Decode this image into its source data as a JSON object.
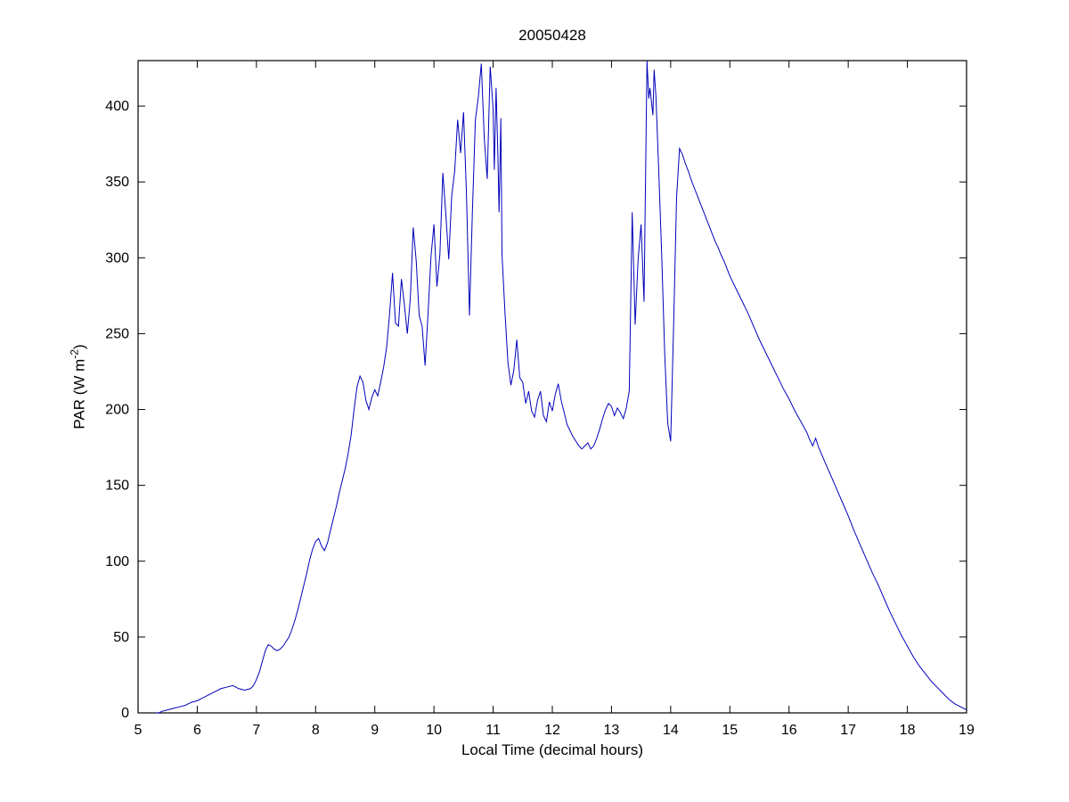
{
  "chart_data": {
    "type": "line",
    "title": "20050428",
    "xlabel": "Local Time (decimal hours)",
    "ylabel": "PAR (W m^-2)",
    "ylabel_parts": {
      "base": "PAR (W m",
      "sup": "-2",
      "close": ")"
    },
    "xlim": [
      5,
      19
    ],
    "ylim": [
      0,
      430
    ],
    "xticks": [
      5,
      6,
      7,
      8,
      9,
      10,
      11,
      12,
      13,
      14,
      15,
      16,
      17,
      18,
      19
    ],
    "yticks": [
      0,
      50,
      100,
      150,
      200,
      250,
      300,
      350,
      400
    ],
    "grid": false,
    "legend": "none",
    "line_color": "#0000bb",
    "axis_color": "#000000",
    "series": [
      {
        "name": "PAR",
        "color": "#0000bb",
        "points": [
          [
            5.3,
            0
          ],
          [
            5.35,
            0
          ],
          [
            5.4,
            1
          ],
          [
            5.5,
            2
          ],
          [
            5.6,
            3
          ],
          [
            5.7,
            4
          ],
          [
            5.8,
            5
          ],
          [
            5.9,
            7
          ],
          [
            6.0,
            8
          ],
          [
            6.1,
            10
          ],
          [
            6.2,
            12
          ],
          [
            6.3,
            14
          ],
          [
            6.4,
            16
          ],
          [
            6.5,
            17
          ],
          [
            6.6,
            18
          ],
          [
            6.65,
            17
          ],
          [
            6.7,
            16
          ],
          [
            6.8,
            15
          ],
          [
            6.9,
            16
          ],
          [
            6.95,
            18
          ],
          [
            7.0,
            22
          ],
          [
            7.05,
            27
          ],
          [
            7.1,
            34
          ],
          [
            7.15,
            41
          ],
          [
            7.2,
            45
          ],
          [
            7.25,
            44
          ],
          [
            7.3,
            42
          ],
          [
            7.35,
            41
          ],
          [
            7.4,
            42
          ],
          [
            7.45,
            44
          ],
          [
            7.5,
            47
          ],
          [
            7.55,
            50
          ],
          [
            7.6,
            55
          ],
          [
            7.65,
            61
          ],
          [
            7.7,
            68
          ],
          [
            7.75,
            76
          ],
          [
            7.8,
            84
          ],
          [
            7.85,
            92
          ],
          [
            7.9,
            101
          ],
          [
            7.95,
            108
          ],
          [
            8.0,
            113
          ],
          [
            8.05,
            115
          ],
          [
            8.1,
            110
          ],
          [
            8.15,
            107
          ],
          [
            8.2,
            112
          ],
          [
            8.25,
            120
          ],
          [
            8.3,
            128
          ],
          [
            8.35,
            136
          ],
          [
            8.4,
            145
          ],
          [
            8.45,
            153
          ],
          [
            8.5,
            161
          ],
          [
            8.55,
            171
          ],
          [
            8.6,
            183
          ],
          [
            8.65,
            200
          ],
          [
            8.7,
            215
          ],
          [
            8.75,
            222
          ],
          [
            8.8,
            218
          ],
          [
            8.85,
            206
          ],
          [
            8.9,
            200
          ],
          [
            8.95,
            208
          ],
          [
            9.0,
            213
          ],
          [
            9.05,
            209
          ],
          [
            9.1,
            218
          ],
          [
            9.15,
            228
          ],
          [
            9.2,
            241
          ],
          [
            9.25,
            263
          ],
          [
            9.3,
            290
          ],
          [
            9.35,
            257
          ],
          [
            9.4,
            255
          ],
          [
            9.45,
            286
          ],
          [
            9.5,
            269
          ],
          [
            9.55,
            250
          ],
          [
            9.6,
            273
          ],
          [
            9.65,
            320
          ],
          [
            9.7,
            298
          ],
          [
            9.75,
            262
          ],
          [
            9.8,
            255
          ],
          [
            9.85,
            229
          ],
          [
            9.9,
            263
          ],
          [
            9.95,
            301
          ],
          [
            10.0,
            322
          ],
          [
            10.05,
            281
          ],
          [
            10.1,
            302
          ],
          [
            10.15,
            356
          ],
          [
            10.2,
            329
          ],
          [
            10.25,
            299
          ],
          [
            10.3,
            341
          ],
          [
            10.35,
            357
          ],
          [
            10.4,
            391
          ],
          [
            10.45,
            369
          ],
          [
            10.5,
            396
          ],
          [
            10.55,
            341
          ],
          [
            10.6,
            262
          ],
          [
            10.65,
            331
          ],
          [
            10.7,
            391
          ],
          [
            10.75,
            406
          ],
          [
            10.8,
            428
          ],
          [
            10.85,
            379
          ],
          [
            10.9,
            352
          ],
          [
            10.95,
            426
          ],
          [
            11.0,
            398
          ],
          [
            11.02,
            358
          ],
          [
            11.05,
            412
          ],
          [
            11.08,
            368
          ],
          [
            11.1,
            330
          ],
          [
            11.13,
            392
          ],
          [
            11.15,
            302
          ],
          [
            11.2,
            264
          ],
          [
            11.25,
            231
          ],
          [
            11.3,
            216
          ],
          [
            11.35,
            226
          ],
          [
            11.4,
            246
          ],
          [
            11.45,
            221
          ],
          [
            11.5,
            218
          ],
          [
            11.55,
            204
          ],
          [
            11.6,
            212
          ],
          [
            11.65,
            199
          ],
          [
            11.7,
            195
          ],
          [
            11.75,
            206
          ],
          [
            11.8,
            212
          ],
          [
            11.85,
            196
          ],
          [
            11.9,
            192
          ],
          [
            11.95,
            205
          ],
          [
            12.0,
            199
          ],
          [
            12.05,
            210
          ],
          [
            12.1,
            217
          ],
          [
            12.15,
            206
          ],
          [
            12.2,
            198
          ],
          [
            12.25,
            190
          ],
          [
            12.3,
            186
          ],
          [
            12.35,
            182
          ],
          [
            12.4,
            179
          ],
          [
            12.45,
            176
          ],
          [
            12.5,
            174
          ],
          [
            12.55,
            176
          ],
          [
            12.6,
            178
          ],
          [
            12.65,
            174
          ],
          [
            12.7,
            176
          ],
          [
            12.75,
            181
          ],
          [
            12.8,
            187
          ],
          [
            12.85,
            194
          ],
          [
            12.9,
            200
          ],
          [
            12.95,
            204
          ],
          [
            13.0,
            202
          ],
          [
            13.05,
            196
          ],
          [
            13.1,
            201
          ],
          [
            13.15,
            198
          ],
          [
            13.2,
            194
          ],
          [
            13.25,
            201
          ],
          [
            13.3,
            212
          ],
          [
            13.35,
            330
          ],
          [
            13.4,
            256
          ],
          [
            13.45,
            299
          ],
          [
            13.5,
            322
          ],
          [
            13.55,
            271
          ],
          [
            13.6,
            430
          ],
          [
            13.63,
            405
          ],
          [
            13.65,
            412
          ],
          [
            13.7,
            394
          ],
          [
            13.72,
            424
          ],
          [
            13.75,
            407
          ],
          [
            13.8,
            356
          ],
          [
            13.85,
            300
          ],
          [
            13.9,
            236
          ],
          [
            13.95,
            191
          ],
          [
            14.0,
            179
          ],
          [
            14.05,
            256
          ],
          [
            14.1,
            340
          ],
          [
            14.15,
            372
          ],
          [
            14.2,
            368
          ],
          [
            14.25,
            362
          ],
          [
            14.3,
            357
          ],
          [
            14.35,
            351
          ],
          [
            14.4,
            346
          ],
          [
            14.45,
            341
          ],
          [
            14.5,
            336
          ],
          [
            14.55,
            331
          ],
          [
            14.6,
            326
          ],
          [
            14.65,
            321
          ],
          [
            14.7,
            316
          ],
          [
            14.75,
            311
          ],
          [
            14.8,
            307
          ],
          [
            14.85,
            302
          ],
          [
            14.9,
            298
          ],
          [
            14.95,
            293
          ],
          [
            15.0,
            288
          ],
          [
            15.1,
            280
          ],
          [
            15.2,
            272
          ],
          [
            15.3,
            264
          ],
          [
            15.4,
            255
          ],
          [
            15.5,
            246
          ],
          [
            15.6,
            238
          ],
          [
            15.7,
            230
          ],
          [
            15.8,
            222
          ],
          [
            15.9,
            214
          ],
          [
            16.0,
            207
          ],
          [
            16.1,
            199
          ],
          [
            16.2,
            192
          ],
          [
            16.3,
            185
          ],
          [
            16.35,
            180
          ],
          [
            16.4,
            176
          ],
          [
            16.45,
            181
          ],
          [
            16.5,
            175
          ],
          [
            16.6,
            166
          ],
          [
            16.7,
            157
          ],
          [
            16.8,
            148
          ],
          [
            16.9,
            139
          ],
          [
            17.0,
            130
          ],
          [
            17.1,
            120
          ],
          [
            17.2,
            111
          ],
          [
            17.3,
            102
          ],
          [
            17.4,
            93
          ],
          [
            17.5,
            85
          ],
          [
            17.6,
            76
          ],
          [
            17.7,
            67
          ],
          [
            17.8,
            59
          ],
          [
            17.9,
            51
          ],
          [
            18.0,
            44
          ],
          [
            18.1,
            37
          ],
          [
            18.2,
            31
          ],
          [
            18.3,
            26
          ],
          [
            18.4,
            21
          ],
          [
            18.5,
            17
          ],
          [
            18.6,
            13
          ],
          [
            18.7,
            9
          ],
          [
            18.8,
            6
          ],
          [
            18.9,
            4
          ],
          [
            19.0,
            2
          ]
        ]
      }
    ]
  }
}
